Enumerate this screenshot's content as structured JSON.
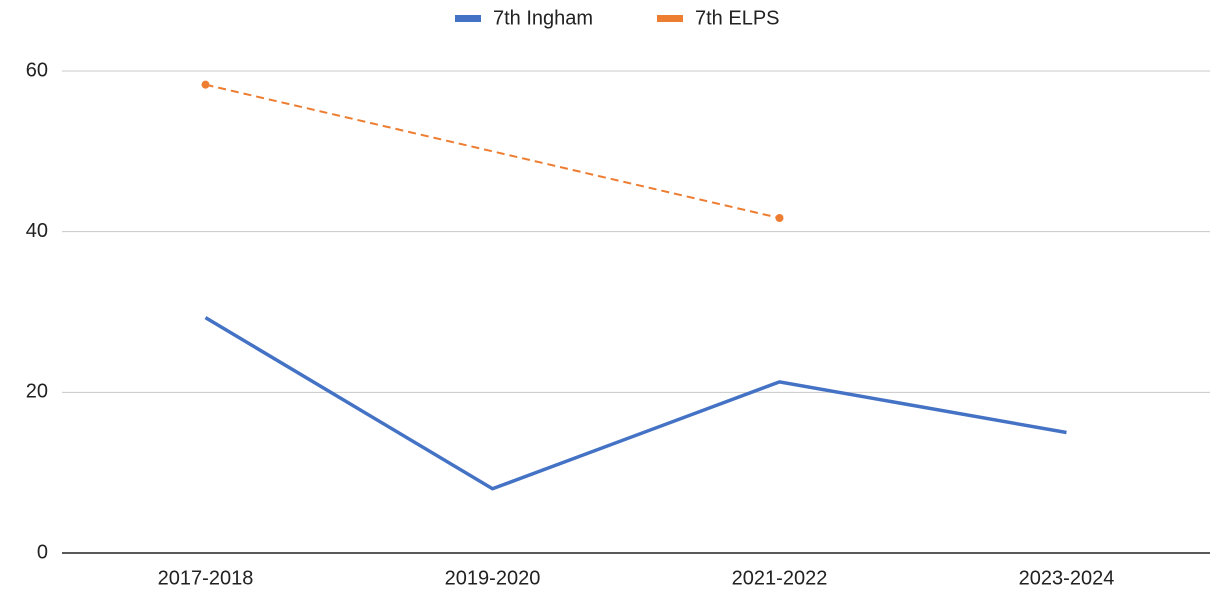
{
  "chart_data": {
    "type": "line",
    "categories": [
      "2017-2018",
      "2019-2020",
      "2021-2022",
      "2023-2024"
    ],
    "series": [
      {
        "name": "7th Ingham",
        "color": "#4472c4",
        "values": [
          29.3,
          8,
          21.3,
          15
        ],
        "line_style": "solid",
        "markers": false
      },
      {
        "name": "7th ELPS",
        "color": "#ed7d31",
        "values": [
          58.3,
          null,
          41.7,
          null
        ],
        "line_style": "dashed",
        "markers": true,
        "connect_gaps": true
      }
    ],
    "ylim": [
      0,
      60
    ],
    "yticks": [
      0,
      20,
      40,
      60
    ],
    "grid": true,
    "legend": "top"
  }
}
